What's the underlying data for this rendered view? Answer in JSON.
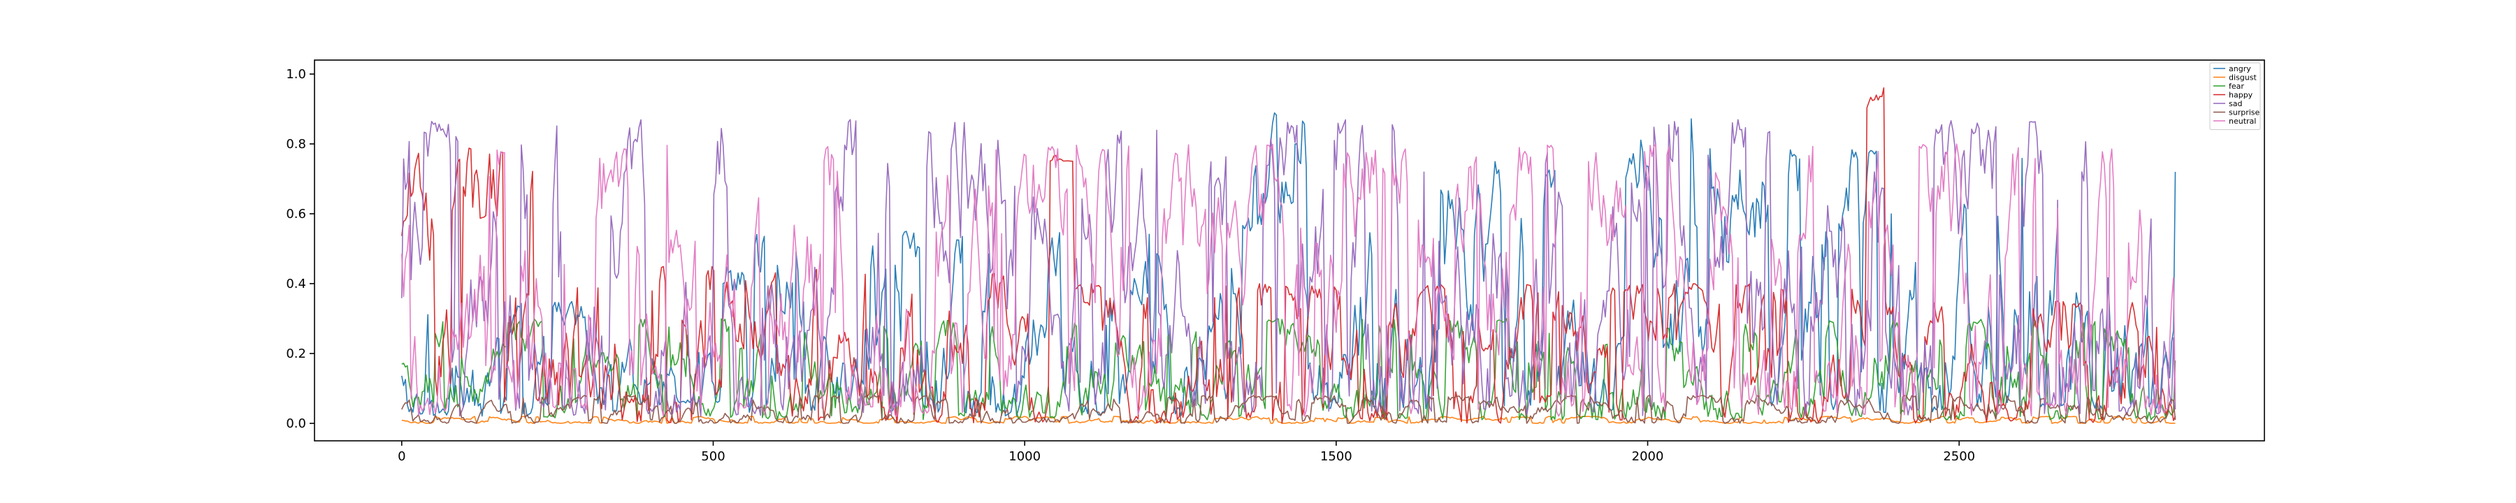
{
  "chart_data": {
    "type": "line",
    "title": "",
    "xlabel": "",
    "ylabel": "",
    "xlim": [
      -140,
      2990
    ],
    "ylim": [
      -0.05,
      1.04
    ],
    "x_ticks": [
      0,
      500,
      1000,
      1500,
      2000,
      2500
    ],
    "y_ticks": [
      0.0,
      0.2,
      0.4,
      0.6,
      0.8,
      1.0
    ],
    "x_tick_labels": [
      "0",
      "500",
      "1000",
      "1500",
      "2000",
      "2500"
    ],
    "y_tick_labels": [
      "0.0",
      "0.2",
      "0.4",
      "0.6",
      "0.8",
      "1.0"
    ],
    "grid": false,
    "legend_position": "top-right",
    "n_points": 2850,
    "x_start": 0,
    "x_end": 2849,
    "series": [
      {
        "name": "angry",
        "color": "#1f77b4",
        "regimes": [
          {
            "x": [
              0,
              350
            ],
            "low": 0.02,
            "high": 0.35
          },
          {
            "x": [
              350,
              550
            ],
            "low": 0.05,
            "high": 0.45
          },
          {
            "x": [
              550,
              900
            ],
            "low": 0.03,
            "high": 0.55
          },
          {
            "x": [
              900,
              1350
            ],
            "low": 0.02,
            "high": 0.6
          },
          {
            "x": [
              1350,
              1450
            ],
            "low": 0.55,
            "high": 0.9
          },
          {
            "x": [
              1450,
              1950
            ],
            "low": 0.03,
            "high": 0.75
          },
          {
            "x": [
              1950,
              2120
            ],
            "low": 0.2,
            "high": 0.92
          },
          {
            "x": [
              2120,
              2850
            ],
            "low": 0.03,
            "high": 0.8
          }
        ],
        "last_value": 0.72
      },
      {
        "name": "disgust",
        "color": "#ff7f0e",
        "regimes": [
          {
            "x": [
              0,
              2850
            ],
            "low": 0.0,
            "high": 0.02
          }
        ],
        "last_value": 0.0
      },
      {
        "name": "fear",
        "color": "#2ca02c",
        "regimes": [
          {
            "x": [
              0,
              2850
            ],
            "low": 0.01,
            "high": 0.3
          }
        ],
        "last_value": 0.18
      },
      {
        "name": "happy",
        "color": "#d62728",
        "regimes": [
          {
            "x": [
              0,
              300
            ],
            "low": 0.05,
            "high": 0.8
          },
          {
            "x": [
              300,
              1040
            ],
            "low": 0.0,
            "high": 0.45
          },
          {
            "x": [
              1040,
              1080
            ],
            "low": 0.75,
            "high": 0.78
          },
          {
            "x": [
              1080,
              2350
            ],
            "low": 0.0,
            "high": 0.4
          },
          {
            "x": [
              2350,
              2380
            ],
            "low": 0.9,
            "high": 0.99
          },
          {
            "x": [
              2380,
              2850
            ],
            "low": 0.0,
            "high": 0.35
          }
        ],
        "last_value": 0.02
      },
      {
        "name": "sad",
        "color": "#9467bd",
        "regimes": [
          {
            "x": [
              0,
              2850
            ],
            "low": 0.02,
            "high": 0.87
          }
        ],
        "last_value": 0.04
      },
      {
        "name": "surprise",
        "color": "#8c564b",
        "regimes": [
          {
            "x": [
              0,
              2850
            ],
            "low": 0.0,
            "high": 0.08
          }
        ],
        "last_value": 0.01
      },
      {
        "name": "neutral",
        "color": "#e377c2",
        "regimes": [
          {
            "x": [
              0,
              2850
            ],
            "low": 0.02,
            "high": 0.8
          }
        ],
        "last_value": 0.06
      }
    ]
  },
  "legend": {
    "items": [
      "angry",
      "disgust",
      "fear",
      "happy",
      "sad",
      "surprise",
      "neutral"
    ]
  }
}
